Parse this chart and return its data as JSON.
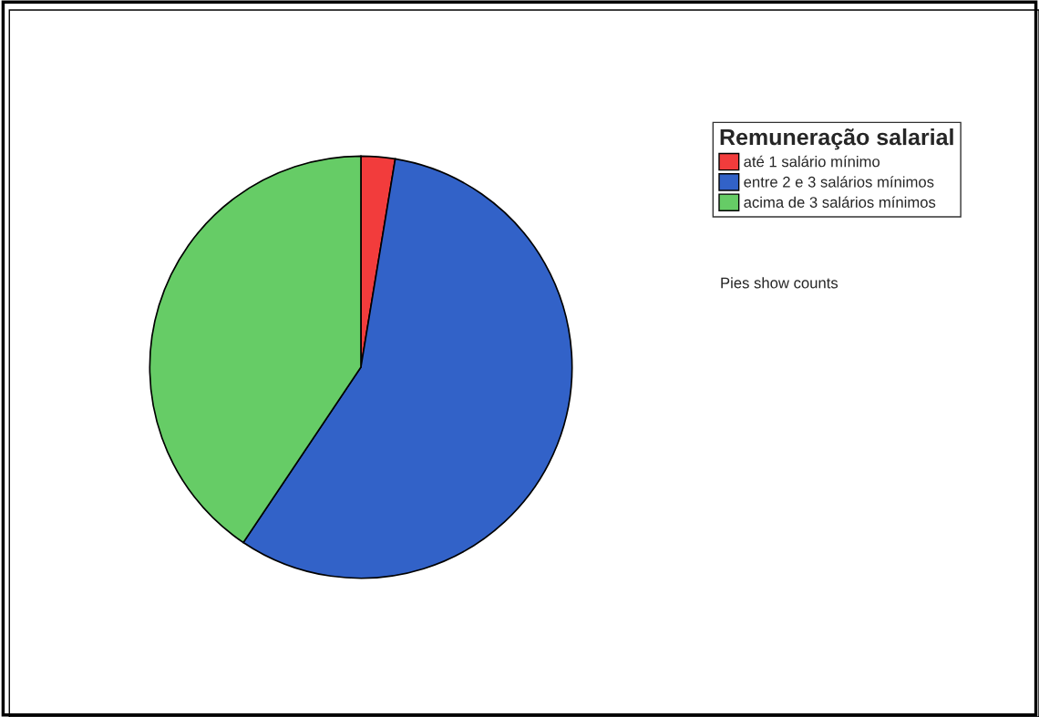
{
  "chart_data": {
    "type": "pie",
    "legend_title": "Remuneração salarial",
    "categories": [
      "até 1 salário mínimo",
      "entre 2 e 3 salários mínimos",
      "acima de 3 salários mínimos"
    ],
    "values": [
      2.6,
      56.8,
      40.6
    ],
    "colors": [
      "#f23c3c",
      "#3262c8",
      "#66cc66"
    ],
    "legend": "top right",
    "annotations": [
      "Pies show counts"
    ]
  }
}
